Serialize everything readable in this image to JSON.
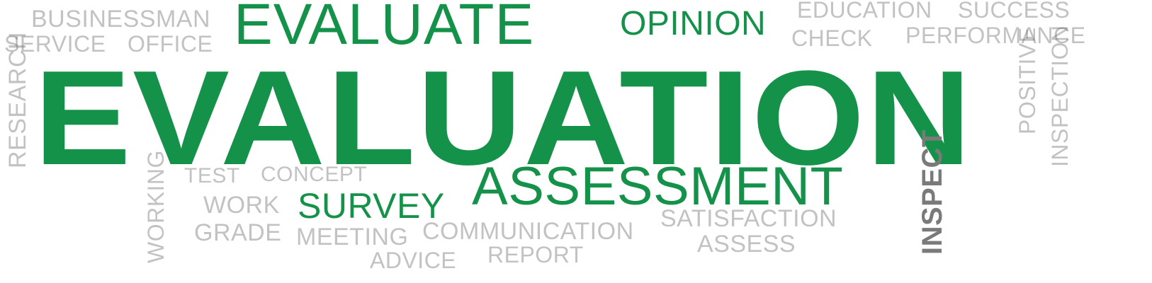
{
  "word_cloud": {
    "colors": {
      "green": "#15924a",
      "gray_light": "#6f6f6f",
      "gray_dark": "#7a7a7a",
      "background": "#ffffff"
    },
    "words": {
      "businessman": "BUSINESSMAN",
      "service": "SERVICE",
      "office": "OFFICE",
      "evaluate": "EVALUATE",
      "opinion": "OPINION",
      "education": "EDUCATION",
      "success": "SUCCESS",
      "check": "CHECK",
      "performance": "PERFORMANCE",
      "evaluation": "EVALUATION",
      "research": "RESEARCH",
      "positive": "POSITIVE",
      "inspection": "INSPECTION",
      "test": "TEST",
      "concept": "CONCEPT",
      "assessment": "ASSESSMENT",
      "inspect": "INSPECT",
      "working": "WORKING",
      "work": "WORK",
      "survey": "SURVEY",
      "satisfaction": "SATISFACTION",
      "grade": "GRADE",
      "meeting": "MEETING",
      "communication": "COMMUNICATION",
      "assess": "ASSESS",
      "advice": "ADVICE",
      "report": "REPORT"
    }
  }
}
